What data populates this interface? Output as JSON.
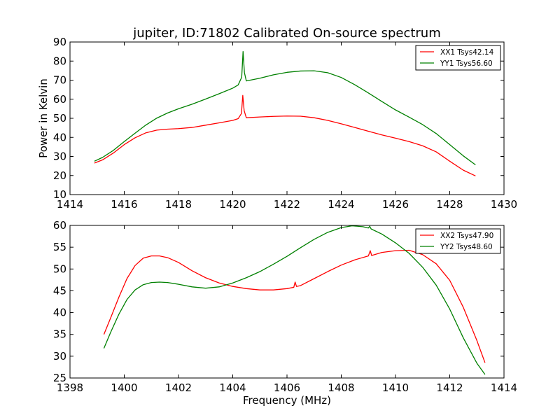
{
  "figure": {
    "title": "jupiter, ID:71802 Calibrated On-source spectrum"
  },
  "chart_data": [
    {
      "type": "line",
      "title": "jupiter, ID:71802 Calibrated On-source spectrum",
      "xlabel": "",
      "ylabel": "Power in Kelvin",
      "xlim": [
        1414,
        1430
      ],
      "ylim": [
        10,
        90
      ],
      "xticks": [
        1414,
        1416,
        1418,
        1420,
        1422,
        1424,
        1426,
        1428,
        1430
      ],
      "yticks": [
        10,
        20,
        30,
        40,
        50,
        60,
        70,
        80,
        90
      ],
      "grid": false,
      "legend_position": "top-right",
      "series": [
        {
          "name": "XX1 Tsys42.14",
          "color": "#ff0000",
          "points": [
            [
              1414.9,
              26.5
            ],
            [
              1415.2,
              28.2
            ],
            [
              1415.6,
              31.8
            ],
            [
              1416.0,
              36.2
            ],
            [
              1416.4,
              39.8
            ],
            [
              1416.8,
              42.4
            ],
            [
              1417.2,
              43.8
            ],
            [
              1417.6,
              44.3
            ],
            [
              1418.0,
              44.6
            ],
            [
              1418.5,
              45.2
            ],
            [
              1419.0,
              46.4
            ],
            [
              1419.5,
              47.6
            ],
            [
              1420.0,
              48.9
            ],
            [
              1420.2,
              49.8
            ],
            [
              1420.32,
              52.5
            ],
            [
              1420.37,
              62.0
            ],
            [
              1420.42,
              54.0
            ],
            [
              1420.5,
              50.3
            ],
            [
              1421.0,
              50.7
            ],
            [
              1421.5,
              51.0
            ],
            [
              1422.0,
              51.2
            ],
            [
              1422.5,
              51.1
            ],
            [
              1423.0,
              50.3
            ],
            [
              1423.5,
              48.9
            ],
            [
              1424.0,
              47.1
            ],
            [
              1424.5,
              45.2
            ],
            [
              1425.0,
              43.2
            ],
            [
              1425.5,
              41.3
            ],
            [
              1426.0,
              39.6
            ],
            [
              1426.5,
              37.8
            ],
            [
              1427.0,
              35.6
            ],
            [
              1427.5,
              32.4
            ],
            [
              1428.0,
              27.5
            ],
            [
              1428.5,
              22.8
            ],
            [
              1428.95,
              19.8
            ]
          ]
        },
        {
          "name": "YY1 Tsys56.60",
          "color": "#008000",
          "points": [
            [
              1414.9,
              27.5
            ],
            [
              1415.2,
              29.5
            ],
            [
              1415.6,
              33.2
            ],
            [
              1416.0,
              37.8
            ],
            [
              1416.4,
              42.2
            ],
            [
              1416.8,
              46.5
            ],
            [
              1417.2,
              50.1
            ],
            [
              1417.6,
              52.8
            ],
            [
              1418.0,
              55.0
            ],
            [
              1418.5,
              57.4
            ],
            [
              1419.0,
              60.1
            ],
            [
              1419.5,
              62.9
            ],
            [
              1420.0,
              65.8
            ],
            [
              1420.2,
              67.5
            ],
            [
              1420.33,
              71.5
            ],
            [
              1420.38,
              85.0
            ],
            [
              1420.43,
              74.0
            ],
            [
              1420.5,
              69.6
            ],
            [
              1421.0,
              71.0
            ],
            [
              1421.5,
              72.8
            ],
            [
              1422.0,
              74.1
            ],
            [
              1422.5,
              74.8
            ],
            [
              1423.0,
              74.9
            ],
            [
              1423.5,
              73.9
            ],
            [
              1424.0,
              71.4
            ],
            [
              1424.5,
              67.6
            ],
            [
              1425.0,
              63.3
            ],
            [
              1425.5,
              58.8
            ],
            [
              1426.0,
              54.4
            ],
            [
              1426.5,
              50.6
            ],
            [
              1427.0,
              46.7
            ],
            [
              1427.5,
              42.0
            ],
            [
              1428.0,
              36.2
            ],
            [
              1428.5,
              30.3
            ],
            [
              1428.95,
              25.6
            ]
          ]
        }
      ]
    },
    {
      "type": "line",
      "title": "",
      "xlabel": "Frequency (MHz)",
      "ylabel": "",
      "xlim": [
        1398,
        1414
      ],
      "ylim": [
        25,
        60
      ],
      "xticks": [
        1398,
        1400,
        1402,
        1404,
        1406,
        1408,
        1410,
        1412,
        1414
      ],
      "yticks": [
        25,
        30,
        35,
        40,
        45,
        50,
        55,
        60
      ],
      "grid": false,
      "legend_position": "top-right",
      "series": [
        {
          "name": "XX2 Tsys47.90",
          "color": "#ff0000",
          "points": [
            [
              1399.25,
              35.0
            ],
            [
              1399.5,
              38.8
            ],
            [
              1399.8,
              43.5
            ],
            [
              1400.1,
              47.8
            ],
            [
              1400.4,
              50.8
            ],
            [
              1400.7,
              52.5
            ],
            [
              1401.0,
              53.0
            ],
            [
              1401.3,
              53.0
            ],
            [
              1401.6,
              52.6
            ],
            [
              1402.0,
              51.5
            ],
            [
              1402.5,
              49.6
            ],
            [
              1403.0,
              48.0
            ],
            [
              1403.5,
              46.8
            ],
            [
              1404.0,
              46.0
            ],
            [
              1404.5,
              45.5
            ],
            [
              1405.0,
              45.2
            ],
            [
              1405.5,
              45.2
            ],
            [
              1406.0,
              45.5
            ],
            [
              1406.25,
              45.8
            ],
            [
              1406.3,
              47.0
            ],
            [
              1406.35,
              46.0
            ],
            [
              1406.5,
              46.2
            ],
            [
              1407.0,
              47.8
            ],
            [
              1407.5,
              49.4
            ],
            [
              1408.0,
              50.9
            ],
            [
              1408.5,
              52.1
            ],
            [
              1409.0,
              53.0
            ],
            [
              1409.07,
              54.2
            ],
            [
              1409.12,
              53.1
            ],
            [
              1409.5,
              53.8
            ],
            [
              1410.0,
              54.2
            ],
            [
              1410.5,
              54.3
            ],
            [
              1411.0,
              53.3
            ],
            [
              1411.5,
              51.2
            ],
            [
              1412.0,
              47.4
            ],
            [
              1412.5,
              41.2
            ],
            [
              1413.0,
              33.6
            ],
            [
              1413.3,
              28.5
            ]
          ]
        },
        {
          "name": "YY2 Tsys48.60",
          "color": "#008000",
          "points": [
            [
              1399.25,
              31.8
            ],
            [
              1399.5,
              35.5
            ],
            [
              1399.8,
              39.6
            ],
            [
              1400.1,
              43.0
            ],
            [
              1400.4,
              45.2
            ],
            [
              1400.7,
              46.4
            ],
            [
              1401.0,
              46.9
            ],
            [
              1401.3,
              47.0
            ],
            [
              1401.6,
              46.9
            ],
            [
              1402.0,
              46.5
            ],
            [
              1402.5,
              45.9
            ],
            [
              1403.0,
              45.6
            ],
            [
              1403.5,
              45.9
            ],
            [
              1404.0,
              46.8
            ],
            [
              1404.5,
              48.0
            ],
            [
              1405.0,
              49.4
            ],
            [
              1405.5,
              51.1
            ],
            [
              1406.0,
              52.9
            ],
            [
              1406.5,
              54.9
            ],
            [
              1407.0,
              56.8
            ],
            [
              1407.5,
              58.4
            ],
            [
              1408.0,
              59.5
            ],
            [
              1408.4,
              59.9
            ],
            [
              1408.8,
              59.7
            ],
            [
              1409.0,
              59.4
            ],
            [
              1409.05,
              59.8
            ],
            [
              1409.1,
              59.2
            ],
            [
              1409.5,
              58.0
            ],
            [
              1410.0,
              56.0
            ],
            [
              1410.5,
              53.6
            ],
            [
              1411.0,
              50.4
            ],
            [
              1411.5,
              46.3
            ],
            [
              1412.0,
              40.8
            ],
            [
              1412.5,
              34.2
            ],
            [
              1413.0,
              28.4
            ],
            [
              1413.3,
              25.8
            ]
          ]
        }
      ]
    }
  ]
}
